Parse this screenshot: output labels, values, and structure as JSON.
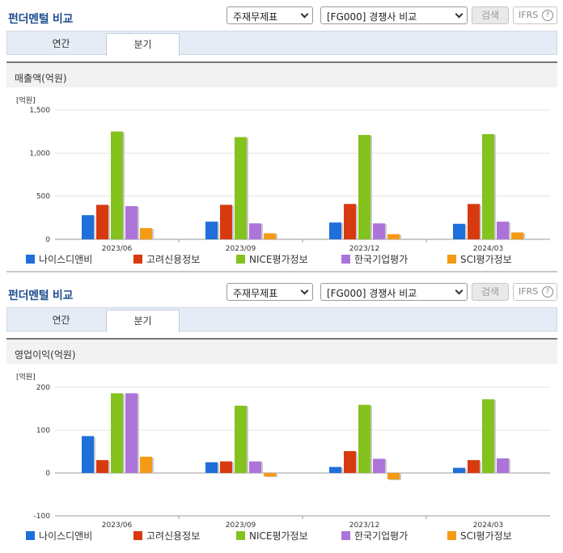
{
  "panels": [
    {
      "title": "펀더멘털 비교",
      "select_a": "주재무제표",
      "select_b": "[FG000] 경쟁사 비교",
      "search_label": "검색",
      "ifrs_label": "IFRS",
      "ifrs_help": "?",
      "tabs": [
        "연간",
        "분기"
      ],
      "chart_title": "매출액(억원)",
      "unit": "[억원]"
    },
    {
      "title": "펀더멘털 비교",
      "select_a": "주재무제표",
      "select_b": "[FG000] 경쟁사 비교",
      "search_label": "검색",
      "ifrs_label": "IFRS",
      "ifrs_help": "?",
      "tabs": [
        "연간",
        "분기"
      ],
      "chart_title": "영업이익(억원)",
      "unit": "[억원]"
    }
  ],
  "chart_data": [
    {
      "type": "bar",
      "title": "매출액(억원)",
      "ylabel": "[억원]",
      "categories": [
        "2023/06",
        "2023/09",
        "2023/12",
        "2024/03"
      ],
      "ylim": [
        0,
        1500
      ],
      "yticks": [
        0,
        500,
        1000,
        1500
      ],
      "ytick_labels": [
        "0",
        "500",
        "1,000",
        "1,500"
      ],
      "grid": true,
      "legend": "bottom",
      "series": [
        {
          "name": "나이스디앤비",
          "color": "#1e6fd9",
          "values": [
            280,
            205,
            195,
            180
          ]
        },
        {
          "name": "고려신용정보",
          "color": "#d83a10",
          "values": [
            400,
            400,
            410,
            410
          ]
        },
        {
          "name": "NICE평가정보",
          "color": "#84c21e",
          "values": [
            1250,
            1185,
            1210,
            1220
          ]
        },
        {
          "name": "한국기업평가",
          "color": "#ac74d9",
          "values": [
            385,
            185,
            185,
            205
          ]
        },
        {
          "name": "SCI평가정보",
          "color": "#f59a16",
          "values": [
            130,
            70,
            60,
            80
          ]
        }
      ]
    },
    {
      "type": "bar",
      "title": "영업이익(억원)",
      "ylabel": "[억원]",
      "categories": [
        "2023/06",
        "2023/09",
        "2023/12",
        "2024/03"
      ],
      "ylim": [
        -100,
        200
      ],
      "yticks": [
        -100,
        0,
        100,
        200
      ],
      "ytick_labels": [
        "-100",
        "0",
        "100",
        "200"
      ],
      "grid": true,
      "legend": "bottom",
      "series": [
        {
          "name": "나이스디앤비",
          "color": "#1e6fd9",
          "values": [
            86,
            25,
            14,
            12
          ]
        },
        {
          "name": "고려신용정보",
          "color": "#d83a10",
          "values": [
            30,
            27,
            51,
            30
          ]
        },
        {
          "name": "NICE평가정보",
          "color": "#84c21e",
          "values": [
            186,
            157,
            159,
            172
          ]
        },
        {
          "name": "한국기업평가",
          "color": "#ac74d9",
          "values": [
            186,
            27,
            33,
            34
          ]
        },
        {
          "name": "SCI평가정보",
          "color": "#f59a16",
          "values": [
            38,
            -8,
            -15,
            0
          ]
        }
      ]
    }
  ]
}
